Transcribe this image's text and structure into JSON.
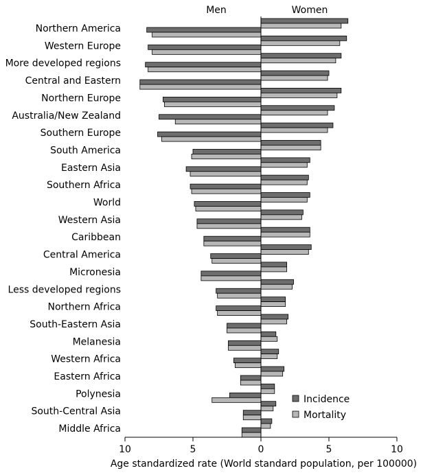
{
  "chart_data": {
    "type": "bar",
    "orientation": "horizontal",
    "layout": "butterfly",
    "panel_labels": {
      "left": "Men",
      "right": "Women"
    },
    "xlabel": "Age standardized rate (World standard population, per 100000)",
    "xlim": [
      -10,
      10
    ],
    "xticks": [
      -10,
      -5,
      0,
      5,
      10
    ],
    "xtick_labels": [
      "10",
      "5",
      "0",
      "5",
      "10"
    ],
    "grid": false,
    "legend_position": "bottom-right",
    "categories": [
      "Northern America",
      "Western Europe",
      "More developed regions",
      "Central and Eastern",
      "Northern Europe",
      "Australia/New Zealand",
      "Southern Europe",
      "South America",
      "Eastern Asia",
      "Southern Africa",
      "World",
      "Western Asia",
      "Caribbean",
      "Central America",
      "Micronesia",
      "Less developed regions",
      "Northern Africa",
      "South-Eastern Asia",
      "Melanesia",
      "Western Africa",
      "Eastern Africa",
      "Polynesia",
      "South-Central Asia",
      "Middle Africa"
    ],
    "series": [
      {
        "name": "Incidence",
        "color": "#6d6d6d",
        "men": [
          8.4,
          8.3,
          8.5,
          8.9,
          7.2,
          7.5,
          7.6,
          5.0,
          5.5,
          5.2,
          4.9,
          4.7,
          4.2,
          3.7,
          4.4,
          3.3,
          3.3,
          2.5,
          2.4,
          2.0,
          1.5,
          2.3,
          1.3,
          1.4
        ],
        "women": [
          6.4,
          6.3,
          5.9,
          5.0,
          5.9,
          5.4,
          5.3,
          4.4,
          3.6,
          3.5,
          3.6,
          3.1,
          3.6,
          3.7,
          1.9,
          2.4,
          1.8,
          2.0,
          1.1,
          1.3,
          1.7,
          1.0,
          1.1,
          0.8
        ]
      },
      {
        "name": "Mortality",
        "color": "#b7b7b7",
        "men": [
          8.0,
          8.0,
          8.3,
          8.9,
          7.1,
          6.3,
          7.3,
          5.1,
          5.2,
          5.1,
          4.8,
          4.7,
          4.2,
          3.6,
          4.4,
          3.2,
          3.2,
          2.5,
          2.4,
          1.9,
          1.5,
          3.6,
          1.3,
          1.4
        ],
        "women": [
          5.9,
          5.8,
          5.5,
          4.9,
          5.6,
          4.9,
          4.9,
          4.4,
          3.4,
          3.4,
          3.4,
          3.0,
          3.6,
          3.5,
          1.9,
          2.3,
          1.8,
          1.9,
          1.2,
          1.2,
          1.6,
          1.0,
          0.9,
          0.7
        ]
      }
    ]
  }
}
